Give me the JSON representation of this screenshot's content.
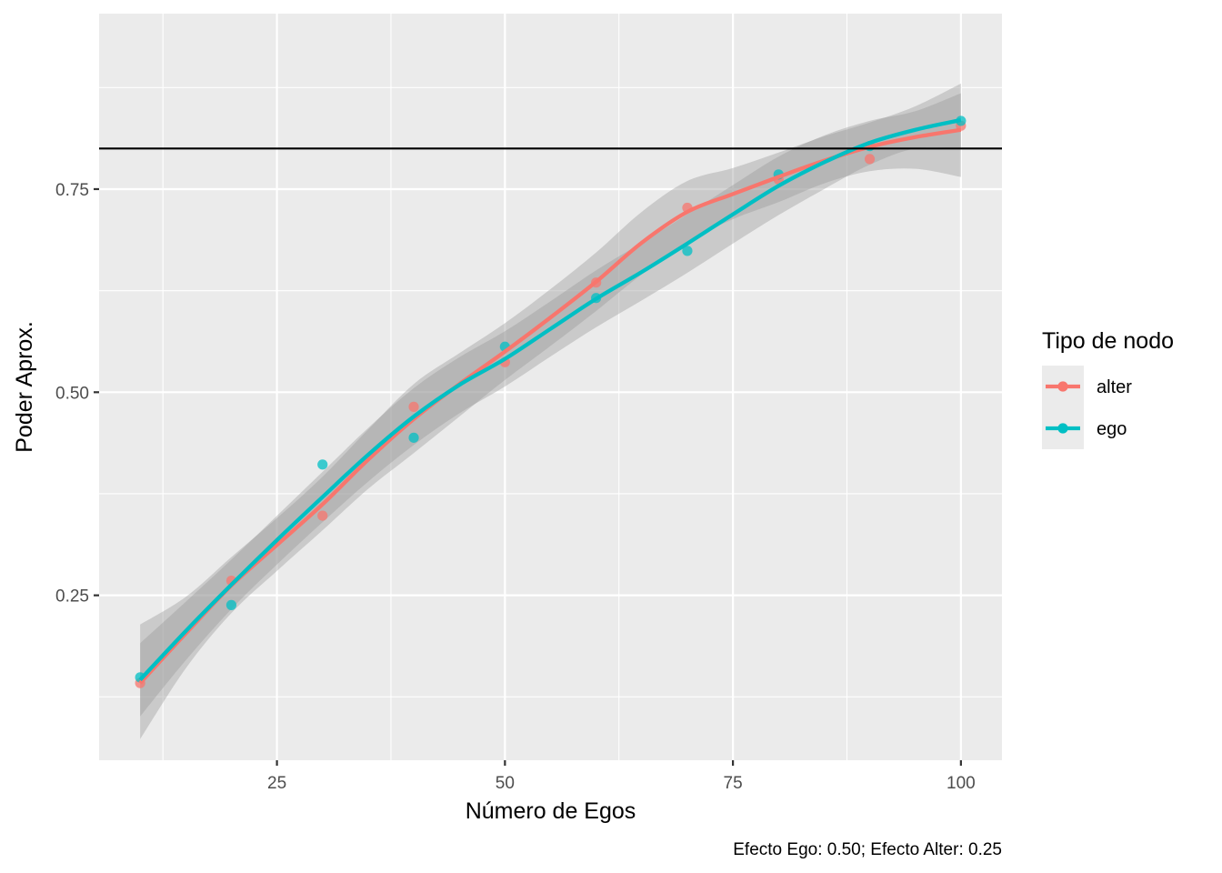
{
  "chart_data": {
    "type": "line",
    "xlabel": "Número de Egos",
    "ylabel": "Poder Aprox.",
    "caption": "Efecto Ego: 0.50; Efecto Alter: 0.25",
    "xlim": [
      5.5,
      104.5
    ],
    "ylim": [
      0.047,
      0.966
    ],
    "x_ticks": [
      25,
      50,
      75,
      100
    ],
    "x_tick_labels": [
      "25",
      "50",
      "75",
      "100"
    ],
    "y_ticks": [
      0.25,
      0.5,
      0.75
    ],
    "y_tick_labels": [
      "0.25",
      "0.50",
      "0.75"
    ],
    "hline": 0.8,
    "grid": true,
    "legend": {
      "title": "Tipo de nodo",
      "position": "right"
    },
    "series": [
      {
        "name": "alter",
        "color": "#F8766D",
        "points": [
          {
            "x": 10,
            "y": 0.142
          },
          {
            "x": 20,
            "y": 0.268
          },
          {
            "x": 30,
            "y": 0.348
          },
          {
            "x": 40,
            "y": 0.482
          },
          {
            "x": 50,
            "y": 0.537
          },
          {
            "x": 60,
            "y": 0.635
          },
          {
            "x": 70,
            "y": 0.727
          },
          {
            "x": 80,
            "y": 0.762
          },
          {
            "x": 90,
            "y": 0.787
          },
          {
            "x": 100,
            "y": 0.828
          }
        ],
        "smooth": [
          {
            "x": 10,
            "y": 0.142,
            "lo": 0.073,
            "hi": 0.214
          },
          {
            "x": 15,
            "y": 0.203,
            "lo": 0.16,
            "hi": 0.248
          },
          {
            "x": 20,
            "y": 0.262,
            "lo": 0.228,
            "hi": 0.297
          },
          {
            "x": 25,
            "y": 0.312,
            "lo": 0.28,
            "hi": 0.345
          },
          {
            "x": 30,
            "y": 0.362,
            "lo": 0.33,
            "hi": 0.396
          },
          {
            "x": 35,
            "y": 0.417,
            "lo": 0.381,
            "hi": 0.454
          },
          {
            "x": 40,
            "y": 0.467,
            "lo": 0.425,
            "hi": 0.51
          },
          {
            "x": 45,
            "y": 0.51,
            "lo": 0.47,
            "hi": 0.548
          },
          {
            "x": 50,
            "y": 0.55,
            "lo": 0.515,
            "hi": 0.585
          },
          {
            "x": 55,
            "y": 0.592,
            "lo": 0.557,
            "hi": 0.627
          },
          {
            "x": 60,
            "y": 0.636,
            "lo": 0.6,
            "hi": 0.672
          },
          {
            "x": 65,
            "y": 0.684,
            "lo": 0.645,
            "hi": 0.722
          },
          {
            "x": 70,
            "y": 0.722,
            "lo": 0.685,
            "hi": 0.76
          },
          {
            "x": 75,
            "y": 0.744,
            "lo": 0.713,
            "hi": 0.776
          },
          {
            "x": 80,
            "y": 0.765,
            "lo": 0.734,
            "hi": 0.795
          },
          {
            "x": 85,
            "y": 0.785,
            "lo": 0.757,
            "hi": 0.815
          },
          {
            "x": 90,
            "y": 0.802,
            "lo": 0.772,
            "hi": 0.832
          },
          {
            "x": 95,
            "y": 0.814,
            "lo": 0.775,
            "hi": 0.852
          },
          {
            "x": 100,
            "y": 0.823,
            "lo": 0.765,
            "hi": 0.88
          }
        ]
      },
      {
        "name": "ego",
        "color": "#00BFC4",
        "points": [
          {
            "x": 10,
            "y": 0.149
          },
          {
            "x": 20,
            "y": 0.238
          },
          {
            "x": 30,
            "y": 0.411
          },
          {
            "x": 40,
            "y": 0.444
          },
          {
            "x": 50,
            "y": 0.556
          },
          {
            "x": 60,
            "y": 0.616
          },
          {
            "x": 70,
            "y": 0.674
          },
          {
            "x": 80,
            "y": 0.768
          },
          {
            "x": 90,
            "y": 0.803
          },
          {
            "x": 100,
            "y": 0.834
          }
        ],
        "smooth": [
          {
            "x": 10,
            "y": 0.146,
            "lo": 0.101,
            "hi": 0.191
          },
          {
            "x": 15,
            "y": 0.206,
            "lo": 0.17,
            "hi": 0.242
          },
          {
            "x": 20,
            "y": 0.263,
            "lo": 0.233,
            "hi": 0.294
          },
          {
            "x": 25,
            "y": 0.318,
            "lo": 0.288,
            "hi": 0.348
          },
          {
            "x": 30,
            "y": 0.371,
            "lo": 0.34,
            "hi": 0.402
          },
          {
            "x": 35,
            "y": 0.423,
            "lo": 0.39,
            "hi": 0.456
          },
          {
            "x": 40,
            "y": 0.47,
            "lo": 0.435,
            "hi": 0.505
          },
          {
            "x": 45,
            "y": 0.509,
            "lo": 0.474,
            "hi": 0.543
          },
          {
            "x": 50,
            "y": 0.541,
            "lo": 0.507,
            "hi": 0.575
          },
          {
            "x": 55,
            "y": 0.578,
            "lo": 0.544,
            "hi": 0.612
          },
          {
            "x": 60,
            "y": 0.615,
            "lo": 0.58,
            "hi": 0.65
          },
          {
            "x": 65,
            "y": 0.648,
            "lo": 0.613,
            "hi": 0.684
          },
          {
            "x": 70,
            "y": 0.683,
            "lo": 0.647,
            "hi": 0.719
          },
          {
            "x": 75,
            "y": 0.719,
            "lo": 0.683,
            "hi": 0.755
          },
          {
            "x": 80,
            "y": 0.754,
            "lo": 0.718,
            "hi": 0.79
          },
          {
            "x": 85,
            "y": 0.783,
            "lo": 0.75,
            "hi": 0.816
          },
          {
            "x": 90,
            "y": 0.807,
            "lo": 0.78,
            "hi": 0.834
          },
          {
            "x": 95,
            "y": 0.823,
            "lo": 0.8,
            "hi": 0.846
          },
          {
            "x": 100,
            "y": 0.835,
            "lo": 0.8,
            "hi": 0.868
          }
        ]
      }
    ]
  }
}
